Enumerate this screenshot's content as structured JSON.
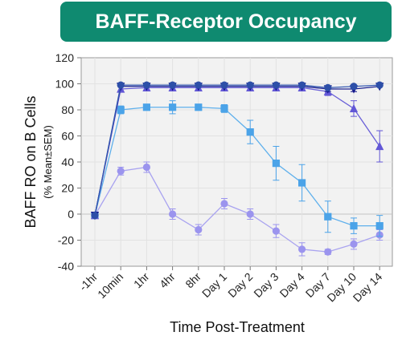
{
  "header": {
    "title": "BAFF-Receptor Occupancy"
  },
  "chart_data": {
    "type": "line",
    "title": "BAFF-Receptor Occupancy",
    "ylabel": "BAFF RO on B Cells",
    "ylabel_sub": "(% Mean±SEM)",
    "xlabel": "Time Post-Treatment",
    "categories": [
      "-1hr",
      "10min",
      "1hr",
      "4hr",
      "8hr",
      "Day 1",
      "Day 2",
      "Day 3",
      "Day 4",
      "Day 7",
      "Day 10",
      "Day 14"
    ],
    "ylim": [
      -40,
      120
    ],
    "yticks": [
      -40,
      -20,
      0,
      20,
      40,
      60,
      80,
      100,
      120
    ],
    "grid": true,
    "series": [
      {
        "marker": "circle",
        "color": "#9b94ee",
        "line_color": "#a9a3f0",
        "values": [
          -1,
          33,
          36,
          0,
          -12,
          8,
          0,
          -13,
          -27,
          -29,
          -23,
          -16
        ],
        "errors": [
          1,
          3,
          4,
          4,
          4,
          4,
          4,
          5,
          5,
          2,
          4,
          4
        ]
      },
      {
        "marker": "square",
        "color": "#4ba3e8",
        "line_color": "#5fb0ec",
        "values": [
          -1,
          80,
          82,
          82,
          82,
          81,
          63,
          39,
          24,
          -2,
          -9,
          -9
        ],
        "errors": [
          1,
          3,
          2,
          5,
          2,
          3,
          9,
          13,
          14,
          12,
          6,
          8
        ]
      },
      {
        "marker": "triangle-up",
        "color": "#6257d6",
        "line_color": "#6a60d8",
        "values": [
          -1,
          96,
          97,
          97,
          97,
          97,
          97,
          97,
          97,
          94,
          81,
          52
        ],
        "errors": [
          1,
          1,
          1,
          1,
          1,
          1,
          1,
          1,
          1,
          3,
          6,
          12
        ]
      },
      {
        "marker": "triangle-down",
        "color": "#10148a",
        "line_color": "#1a2090",
        "values": [
          -1,
          98,
          98,
          98,
          98,
          98,
          98,
          98,
          98,
          96,
          96,
          98
        ],
        "errors": [
          1,
          1,
          1,
          1,
          1,
          1,
          1,
          1,
          1,
          2,
          2,
          1
        ]
      },
      {
        "marker": "circle",
        "color": "#2d4fa8",
        "line_color": "#3458b0",
        "values": [
          -1,
          99,
          99,
          99,
          99,
          99,
          99,
          99,
          99,
          97,
          98,
          99
        ],
        "errors": [
          1,
          1,
          1,
          1,
          1,
          1,
          1,
          1,
          1,
          1,
          1,
          1
        ]
      }
    ]
  }
}
